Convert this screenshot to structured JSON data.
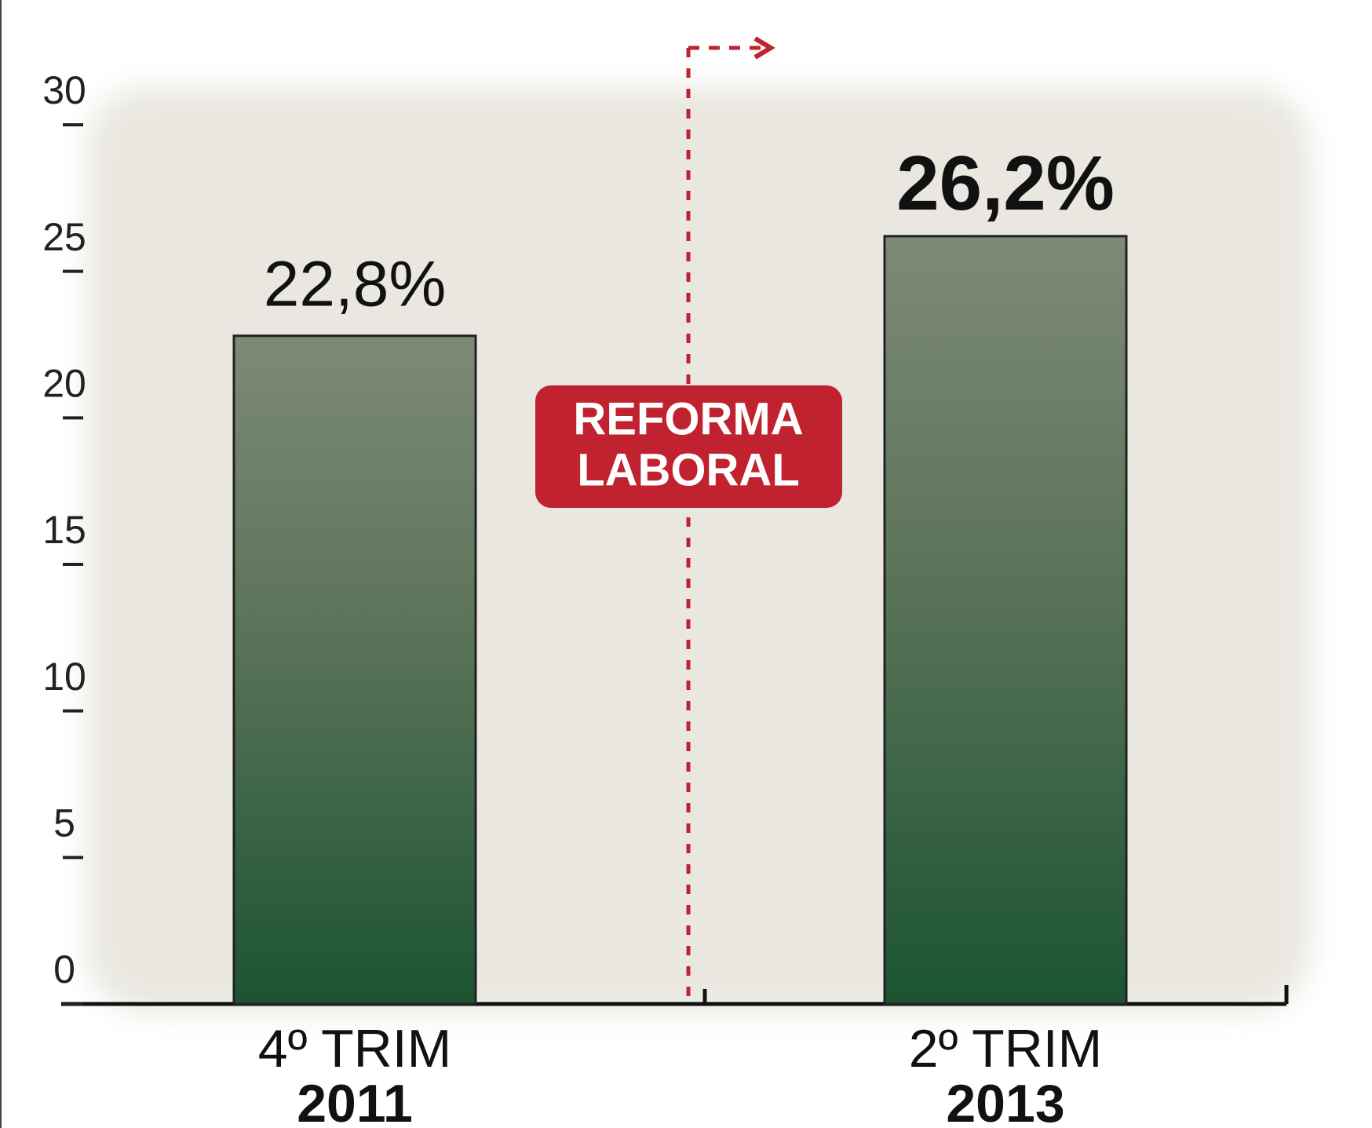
{
  "chart_data": {
    "type": "bar",
    "categories": [
      [
        "4º TRIM",
        "2011"
      ],
      [
        "2º TRIM",
        "2013"
      ]
    ],
    "values": [
      22.8,
      26.2
    ],
    "value_labels": [
      "22,8%",
      "26,2%"
    ],
    "color": "#1b5432",
    "ylim": [
      0,
      30
    ],
    "yticks": [
      0,
      5,
      10,
      15,
      20,
      25,
      30
    ],
    "annotation": [
      "REFORMA",
      "LABORAL"
    ]
  }
}
